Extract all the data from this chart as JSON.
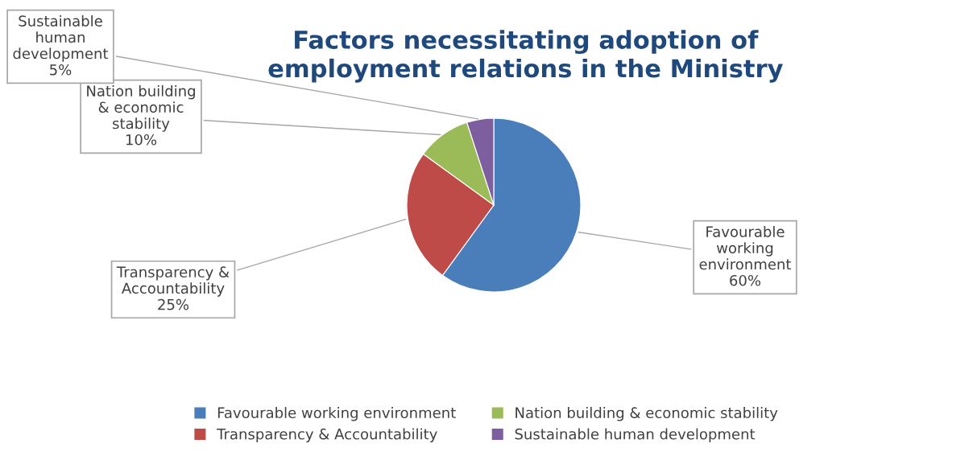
{
  "chart_data": {
    "type": "pie",
    "title": "Factors necessitating adoption of\nemployment relations in the Ministry",
    "categories": [
      "Favourable working environment",
      "Transparency & Accountability",
      "Nation building & economic stability",
      "Sustainable human development"
    ],
    "values": [
      60,
      25,
      10,
      5
    ],
    "colors": [
      "#4a7ebb",
      "#be4b48",
      "#9bbb59",
      "#7d5fa0"
    ],
    "value_labels": [
      "60%",
      "25%",
      "10%",
      "5%"
    ],
    "legend": "bottom"
  }
}
